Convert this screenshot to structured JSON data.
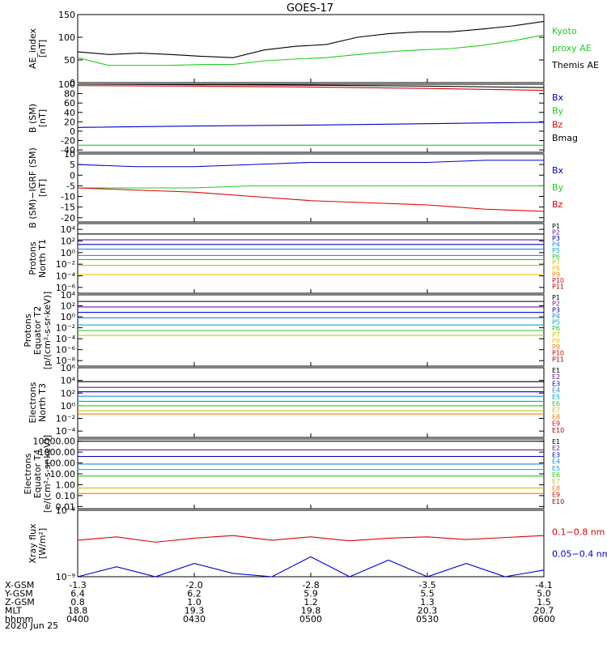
{
  "title": "GOES-17",
  "date_label": "2020 Jun 25",
  "x_axis": {
    "rows": [
      {
        "label": "X-GSM",
        "values": [
          "-1.3",
          "-2.0",
          "-2.8",
          "-3.5",
          "-4.1"
        ]
      },
      {
        "label": "Y-GSM",
        "values": [
          "6.4",
          "6.2",
          "5.9",
          "5.5",
          "5.0"
        ]
      },
      {
        "label": "Z-GSM",
        "values": [
          "0.8",
          "1.0",
          "1.2",
          "1.3",
          "1.5"
        ]
      },
      {
        "label": "MLT",
        "values": [
          "18.8",
          "19.3",
          "19.8",
          "20.3",
          "20.7"
        ]
      },
      {
        "label": "hhmm",
        "values": [
          "0400",
          "0430",
          "0500",
          "0530",
          "0600"
        ]
      }
    ]
  },
  "chart_data": [
    {
      "type": "line",
      "ylabel": [
        "AE_index",
        "[nT]"
      ],
      "ylim": [
        0,
        150
      ],
      "yticks": [
        0,
        50,
        100,
        150
      ],
      "tick_labels": [
        "0",
        "50",
        "100",
        "150"
      ],
      "x": [
        0,
        8,
        16,
        24,
        32,
        40,
        48,
        56,
        64,
        72,
        80,
        88,
        96,
        104,
        112,
        120
      ],
      "legend": [
        {
          "text": "Kyoto",
          "color": "#22cc22"
        },
        {
          "text": "proxy AE",
          "color": "#22cc22"
        },
        {
          "text": "Themis AE",
          "color": "#000000"
        }
      ],
      "series": [
        {
          "color": "#000000",
          "values": [
            68,
            62,
            65,
            62,
            58,
            55,
            72,
            80,
            84,
            100,
            108,
            112,
            112,
            118,
            125,
            135
          ]
        },
        {
          "color": "#22cc22",
          "values": [
            55,
            38,
            38,
            38,
            40,
            40,
            48,
            52,
            55,
            62,
            68,
            72,
            75,
            82,
            92,
            105
          ]
        }
      ]
    },
    {
      "type": "line",
      "ylabel": [
        "B (SM)",
        "[nT]"
      ],
      "ylim": [
        -45,
        100
      ],
      "yticks": [
        -40,
        -20,
        0,
        20,
        40,
        60,
        80,
        100
      ],
      "tick_labels": [
        "-40",
        "-20",
        "0",
        "20",
        "40",
        "60",
        "80",
        "100"
      ],
      "x": [
        0,
        30,
        60,
        90,
        120
      ],
      "legend": [
        {
          "text": "Bx",
          "color": "#0000cc"
        },
        {
          "text": "By",
          "color": "#22cc22"
        },
        {
          "text": "Bz",
          "color": "#dd0000"
        },
        {
          "text": "Bmag",
          "color": "#000000"
        }
      ],
      "series": [
        {
          "color": "#000000",
          "values": [
            100,
            99,
            98,
            96,
            93
          ]
        },
        {
          "color": "#dd0000",
          "values": [
            97,
            96,
            94,
            91,
            87
          ]
        },
        {
          "color": "#0000cc",
          "values": [
            8,
            11,
            13,
            16,
            19
          ]
        },
        {
          "color": "#22cc22",
          "values": [
            -30,
            -30,
            -30,
            -30,
            -30
          ]
        }
      ]
    },
    {
      "type": "line",
      "ylabel": [
        "B (SM)−IGRF (SM)",
        "[nT]"
      ],
      "ylim": [
        -22,
        10
      ],
      "yticks": [
        -20,
        -15,
        -10,
        -5,
        0,
        5,
        10
      ],
      "tick_labels": [
        "-20",
        "-15",
        "-10",
        "-5",
        "0",
        "5",
        "10"
      ],
      "x": [
        0,
        15,
        30,
        45,
        60,
        75,
        90,
        105,
        120
      ],
      "legend": [
        {
          "text": "Bx",
          "color": "#0000cc"
        },
        {
          "text": "By",
          "color": "#22cc22"
        },
        {
          "text": "Bz",
          "color": "#dd0000"
        }
      ],
      "series": [
        {
          "color": "#0000cc",
          "values": [
            5,
            4,
            4,
            5,
            6,
            6,
            6,
            7,
            7
          ]
        },
        {
          "color": "#22cc22",
          "values": [
            -6,
            -6,
            -6,
            -5,
            -5,
            -5,
            -5,
            -5,
            -5
          ]
        },
        {
          "color": "#dd0000",
          "values": [
            -6,
            -7,
            -8,
            -10,
            -12,
            -13,
            -14,
            -16,
            -17
          ]
        }
      ]
    },
    {
      "type": "line",
      "log": true,
      "ylabel": [
        "Protons",
        "North T1"
      ],
      "ylim": [
        -7,
        5
      ],
      "yticks": [
        -6,
        -4,
        -2,
        0,
        2,
        4
      ],
      "tick_labels": [
        "10⁻⁶",
        "10⁻⁴",
        "10⁻²",
        "10⁰",
        "10²",
        "10⁴"
      ],
      "x": [
        0,
        120
      ],
      "legend": [
        {
          "text": "P1",
          "color": "#000000"
        },
        {
          "text": "P2",
          "color": "#6a1b9a"
        },
        {
          "text": "P3",
          "color": "#0000cc"
        },
        {
          "text": "P4",
          "color": "#1e88e5"
        },
        {
          "text": "P5",
          "color": "#00acc1"
        },
        {
          "text": "P6",
          "color": "#22cc22"
        },
        {
          "text": "P7",
          "color": "#c6c600"
        },
        {
          "text": "P8",
          "color": "#f4c400"
        },
        {
          "text": "P9",
          "color": "#f57c00"
        },
        {
          "text": "P10",
          "color": "#dd0000"
        },
        {
          "text": "P11",
          "color": "#aa0000"
        }
      ],
      "series": [
        {
          "color": "#000000",
          "values": [
            3.2,
            3.2
          ]
        },
        {
          "color": "#6a1b9a",
          "values": [
            2.2,
            2.2
          ]
        },
        {
          "color": "#0000cc",
          "values": [
            1.4,
            1.4
          ]
        },
        {
          "color": "#1e88e5",
          "values": [
            0.6,
            0.6
          ]
        },
        {
          "color": "#00acc1",
          "values": [
            -0.5,
            -0.5
          ]
        },
        {
          "color": "#22cc22",
          "values": [
            -1.2,
            -1.2
          ]
        },
        {
          "color": "#c6c600",
          "values": [
            -2.2,
            -2.2
          ]
        },
        {
          "color": "#f4c400",
          "values": [
            -3.8,
            -3.8
          ]
        }
      ]
    },
    {
      "type": "line",
      "log": true,
      "ylabel": [
        "Protons",
        "Equator T2",
        "[p/(cm²-s-sr-keV)]"
      ],
      "ylim": [
        -9,
        4
      ],
      "yticks": [
        -8,
        -6,
        -4,
        -2,
        0,
        2,
        4
      ],
      "tick_labels": [
        "10⁻⁸",
        "10⁻⁶",
        "10⁻⁴",
        "10⁻²",
        "10⁰",
        "10²",
        "10⁴"
      ],
      "x": [
        0,
        120
      ],
      "legend": [
        {
          "text": "P1",
          "color": "#000000"
        },
        {
          "text": "P2",
          "color": "#6a1b9a"
        },
        {
          "text": "P3",
          "color": "#0000cc"
        },
        {
          "text": "P4",
          "color": "#1e88e5"
        },
        {
          "text": "P5",
          "color": "#00acc1"
        },
        {
          "text": "P6",
          "color": "#22cc22"
        },
        {
          "text": "P7",
          "color": "#c6c600"
        },
        {
          "text": "P8",
          "color": "#f4c400"
        },
        {
          "text": "P9",
          "color": "#f57c00"
        },
        {
          "text": "P10",
          "color": "#dd0000"
        },
        {
          "text": "P11",
          "color": "#aa0000"
        }
      ],
      "series": [
        {
          "color": "#000000",
          "values": [
            2.8,
            2.8
          ]
        },
        {
          "color": "#6a1b9a",
          "values": [
            1.8,
            1.8
          ]
        },
        {
          "color": "#0000cc",
          "values": [
            0.8,
            0.8
          ]
        },
        {
          "color": "#1e88e5",
          "values": [
            -0.2,
            -0.2
          ]
        },
        {
          "color": "#00acc1",
          "values": [
            -1.5,
            -1.5
          ]
        },
        {
          "color": "#22cc22",
          "values": [
            -2.5,
            -2.5
          ]
        },
        {
          "color": "#c6c600",
          "values": [
            -3.4,
            -3.4
          ]
        }
      ]
    },
    {
      "type": "line",
      "log": true,
      "ylabel": [
        "Electrons",
        "North T3"
      ],
      "ylim": [
        -5,
        6
      ],
      "yticks": [
        -4,
        -2,
        0,
        2,
        4,
        6
      ],
      "tick_labels": [
        "10⁻⁴",
        "10⁻²",
        "10⁰",
        "10²",
        "10⁴",
        "10⁶"
      ],
      "x": [
        0,
        120
      ],
      "legend": [
        {
          "text": "E1",
          "color": "#000000"
        },
        {
          "text": "E2",
          "color": "#6a1b9a"
        },
        {
          "text": "E3",
          "color": "#0000cc"
        },
        {
          "text": "E4",
          "color": "#1e88e5"
        },
        {
          "text": "E5",
          "color": "#00acc1"
        },
        {
          "text": "E6",
          "color": "#22cc22"
        },
        {
          "text": "E7",
          "color": "#c6c600"
        },
        {
          "text": "E8",
          "color": "#f57c00"
        },
        {
          "text": "E9",
          "color": "#dd0000"
        },
        {
          "text": "E10",
          "color": "#aa0000"
        }
      ],
      "series": [
        {
          "color": "#000000",
          "values": [
            3.8,
            3.8
          ]
        },
        {
          "color": "#6a1b9a",
          "values": [
            2.9,
            2.9
          ]
        },
        {
          "color": "#0000cc",
          "values": [
            2.2,
            2.2
          ]
        },
        {
          "color": "#1e88e5",
          "values": [
            1.5,
            1.5
          ]
        },
        {
          "color": "#00acc1",
          "values": [
            0.7,
            0.7
          ]
        },
        {
          "color": "#22cc22",
          "values": [
            0.0,
            0.0
          ]
        },
        {
          "color": "#c6c600",
          "values": [
            -0.8,
            -0.8
          ]
        },
        {
          "color": "#f57c00",
          "values": [
            -1.3,
            -1.3
          ]
        }
      ]
    },
    {
      "type": "line",
      "log": true,
      "ylabel": [
        "Electrons",
        "Equator T4",
        "[e/(cm²-s-sr-keV)]"
      ],
      "ylim": [
        -2.2,
        4.2
      ],
      "yticks": [
        -2,
        -1,
        0,
        1,
        2,
        3,
        4
      ],
      "tick_labels": [
        "0.01",
        "0.10",
        "1.00",
        "10.00",
        "100.00",
        "1000.00",
        "10000.00"
      ],
      "x": [
        0,
        120
      ],
      "legend": [
        {
          "text": "E1",
          "color": "#000000"
        },
        {
          "text": "E2",
          "color": "#6a1b9a"
        },
        {
          "text": "E3",
          "color": "#0000cc"
        },
        {
          "text": "E4",
          "color": "#1e88e5"
        },
        {
          "text": "E5",
          "color": "#00acc1"
        },
        {
          "text": "E6",
          "color": "#22cc22"
        },
        {
          "text": "E7",
          "color": "#c6c600"
        },
        {
          "text": "E8",
          "color": "#f57c00"
        },
        {
          "text": "E9",
          "color": "#dd0000"
        },
        {
          "text": "E10",
          "color": "#aa0000"
        }
      ],
      "series": [
        {
          "color": "#000000",
          "values": [
            4.0,
            4.0
          ]
        },
        {
          "color": "#6a1b9a",
          "values": [
            3.2,
            3.2
          ]
        },
        {
          "color": "#0000cc",
          "values": [
            2.6,
            2.6
          ]
        },
        {
          "color": "#1e88e5",
          "values": [
            1.9,
            1.9
          ]
        },
        {
          "color": "#00acc1",
          "values": [
            1.4,
            1.4
          ]
        },
        {
          "color": "#22cc22",
          "values": [
            0.8,
            0.8
          ]
        },
        {
          "color": "#c6c600",
          "values": [
            -0.3,
            -0.3
          ]
        },
        {
          "color": "#f57c00",
          "values": [
            -0.8,
            -0.8
          ]
        }
      ]
    },
    {
      "type": "line",
      "log": true,
      "ylabel": [
        "Xray flux",
        "[W/m²]"
      ],
      "ylim": [
        -9,
        -8
      ],
      "yticks": [
        -9,
        -8
      ],
      "tick_labels": [
        "10⁻⁹",
        "10⁻⁸"
      ],
      "x": [
        0,
        10,
        20,
        30,
        40,
        50,
        60,
        70,
        80,
        90,
        100,
        110,
        120
      ],
      "legend": [
        {
          "text": "0.1−0.8 nm",
          "color": "#dd0000"
        },
        {
          "text": "0.05−0.4 nm",
          "color": "#0000cc"
        }
      ],
      "series": [
        {
          "color": "#dd0000",
          "values": [
            -8.45,
            -8.4,
            -8.48,
            -8.42,
            -8.38,
            -8.45,
            -8.4,
            -8.46,
            -8.42,
            -8.4,
            -8.44,
            -8.41,
            -8.38
          ]
        },
        {
          "color": "#0000cc",
          "values": [
            -9,
            -8.85,
            -9,
            -8.8,
            -8.95,
            -9,
            -8.7,
            -9,
            -8.75,
            -9,
            -8.8,
            -9,
            -8.9
          ]
        }
      ]
    }
  ]
}
